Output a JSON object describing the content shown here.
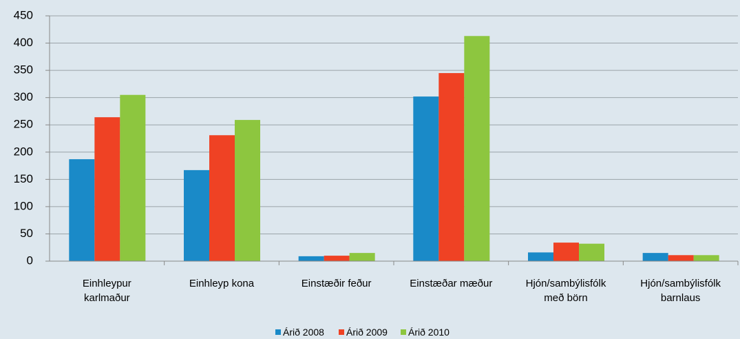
{
  "chart_data": {
    "type": "bar",
    "categories": [
      "Einhleypur\nkarlmaður",
      "Einhleyp kona",
      "Einstæðir feður",
      "Einstæðar mæður",
      "Hjón/sambýlisfólk\nmeð börn",
      "Hjón/sambýlisfólk\nbarnlaus"
    ],
    "series": [
      {
        "name": "Árið 2008",
        "color": "#1a8ac8",
        "values": [
          187,
          167,
          9,
          302,
          16,
          15
        ]
      },
      {
        "name": "Árið 2009",
        "color": "#ef4224",
        "values": [
          264,
          231,
          10,
          345,
          34,
          11
        ]
      },
      {
        "name": "Árið 2010",
        "color": "#8dc63f",
        "values": [
          305,
          259,
          15,
          413,
          32,
          11
        ]
      }
    ],
    "ylim": [
      0,
      450
    ],
    "yticks": [
      0,
      50,
      100,
      150,
      200,
      250,
      300,
      350,
      400,
      450
    ],
    "grid": true,
    "legend": "bottom"
  }
}
